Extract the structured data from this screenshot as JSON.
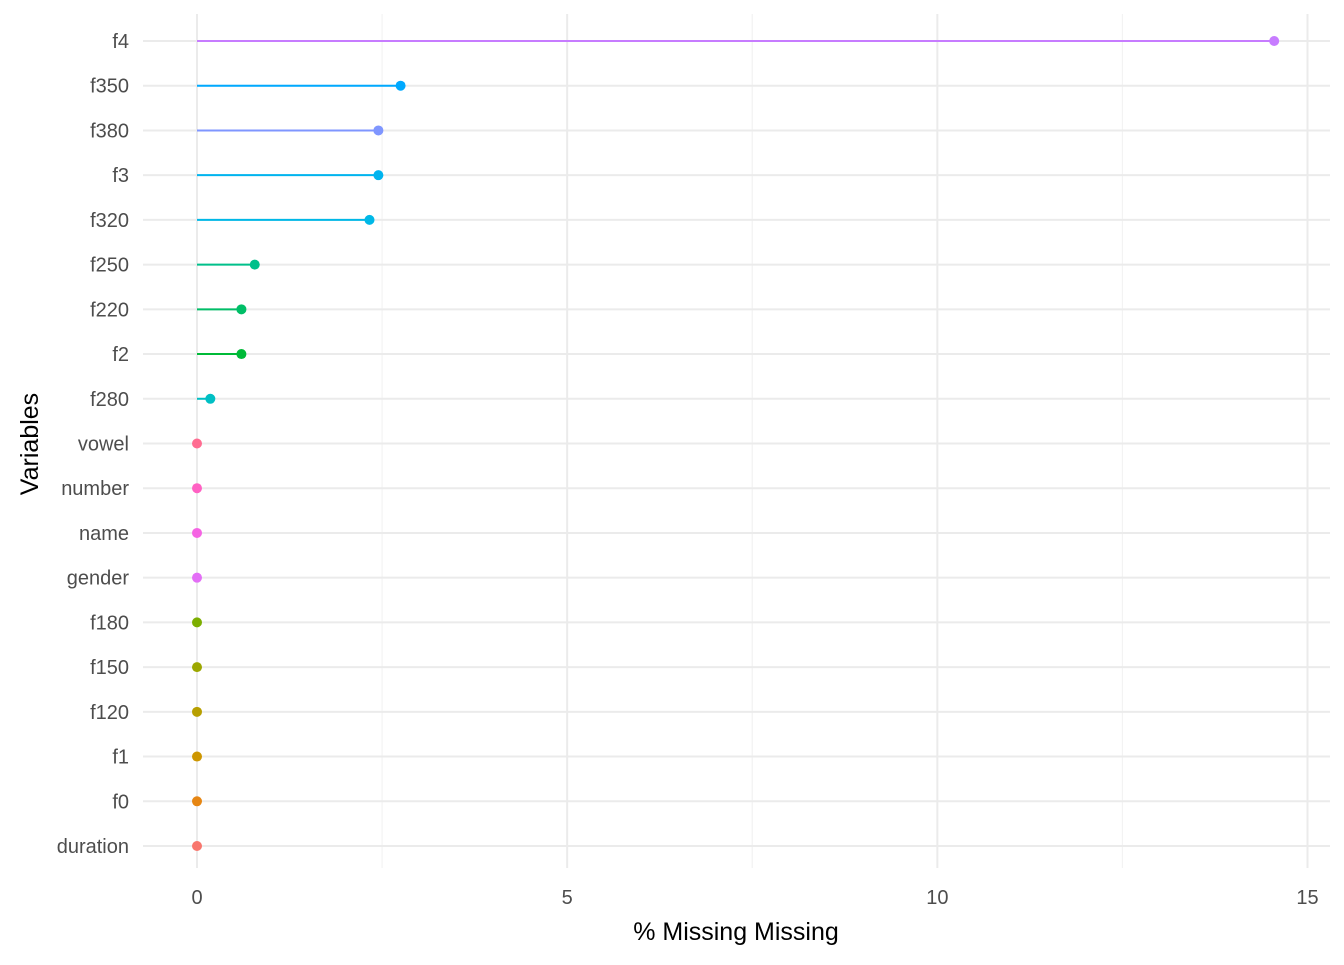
{
  "chart_data": {
    "type": "lollipop",
    "orientation": "horizontal",
    "xlabel": "% Missing Missing",
    "ylabel": "Variables",
    "xlim": [
      -0.9,
      15.3
    ],
    "x_ticks": [
      0,
      5,
      10,
      15
    ],
    "x_minor_ticks": [
      2.5,
      7.5,
      12.5
    ],
    "grid": true,
    "legend": "none",
    "points": [
      {
        "variable": "f4",
        "value": 14.55,
        "color": "#C77CFF"
      },
      {
        "variable": "f350",
        "value": 2.75,
        "color": "#00A9FF"
      },
      {
        "variable": "f380",
        "value": 2.45,
        "color": "#7F96FF"
      },
      {
        "variable": "f3",
        "value": 2.45,
        "color": "#00B4EF"
      },
      {
        "variable": "f320",
        "value": 2.33,
        "color": "#00B8E7"
      },
      {
        "variable": "f250",
        "value": 0.78,
        "color": "#00C08B"
      },
      {
        "variable": "f220",
        "value": 0.6,
        "color": "#00BE67"
      },
      {
        "variable": "f2",
        "value": 0.6,
        "color": "#00BA38"
      },
      {
        "variable": "f280",
        "value": 0.18,
        "color": "#00BFC4"
      },
      {
        "variable": "vowel",
        "value": 0,
        "color": "#FF6C91"
      },
      {
        "variable": "number",
        "value": 0,
        "color": "#FF61C3"
      },
      {
        "variable": "name",
        "value": 0,
        "color": "#F564E3"
      },
      {
        "variable": "gender",
        "value": 0,
        "color": "#E36EF6"
      },
      {
        "variable": "f180",
        "value": 0,
        "color": "#7CAE00"
      },
      {
        "variable": "f150",
        "value": 0,
        "color": "#9CA700"
      },
      {
        "variable": "f120",
        "value": 0,
        "color": "#B79F00"
      },
      {
        "variable": "f1",
        "value": 0,
        "color": "#CD9600"
      },
      {
        "variable": "f0",
        "value": 0,
        "color": "#E68613"
      },
      {
        "variable": "duration",
        "value": 0,
        "color": "#F8766D"
      }
    ]
  }
}
